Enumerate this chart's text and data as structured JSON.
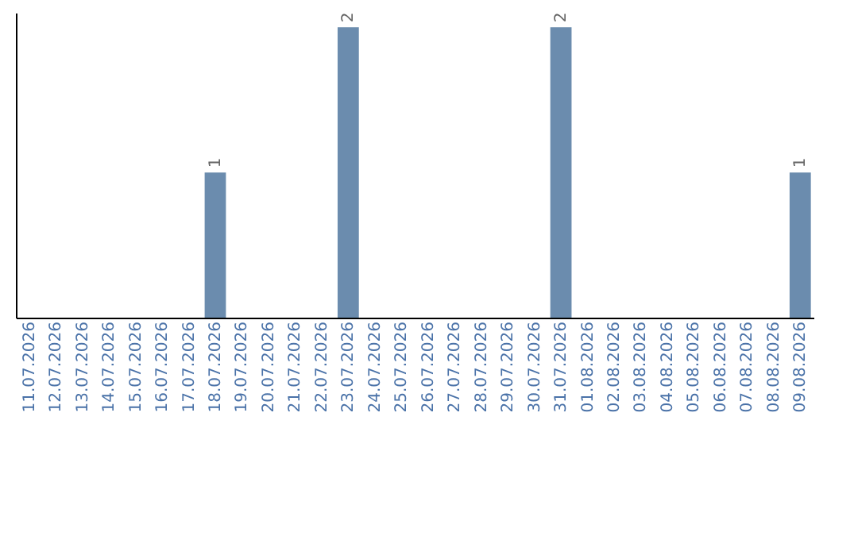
{
  "chart_data": {
    "type": "bar",
    "categories": [
      "11.07.2026",
      "12.07.2026",
      "13.07.2026",
      "14.07.2026",
      "15.07.2026",
      "16.07.2026",
      "17.07.2026",
      "18.07.2026",
      "19.07.2026",
      "20.07.2026",
      "21.07.2026",
      "22.07.2026",
      "23.07.2026",
      "24.07.2026",
      "25.07.2026",
      "26.07.2026",
      "27.07.2026",
      "28.07.2026",
      "29.07.2026",
      "30.07.2026",
      "31.07.2026",
      "01.08.2026",
      "02.08.2026",
      "03.08.2026",
      "04.08.2026",
      "05.08.2026",
      "06.08.2026",
      "07.08.2026",
      "08.08.2026",
      "09.08.2026"
    ],
    "values": [
      0,
      0,
      0,
      0,
      0,
      0,
      0,
      1,
      0,
      0,
      0,
      0,
      2,
      0,
      0,
      0,
      0,
      0,
      0,
      0,
      2,
      0,
      0,
      0,
      0,
      0,
      0,
      0,
      0,
      1
    ],
    "value_labels": [
      null,
      null,
      null,
      null,
      null,
      null,
      null,
      "1",
      null,
      null,
      null,
      null,
      "2",
      null,
      null,
      null,
      null,
      null,
      null,
      null,
      "2",
      null,
      null,
      null,
      null,
      null,
      null,
      null,
      null,
      "1"
    ],
    "color": "#6b8cae",
    "ylim": [
      0,
      2.1
    ],
    "tick_labels": "x"
  }
}
